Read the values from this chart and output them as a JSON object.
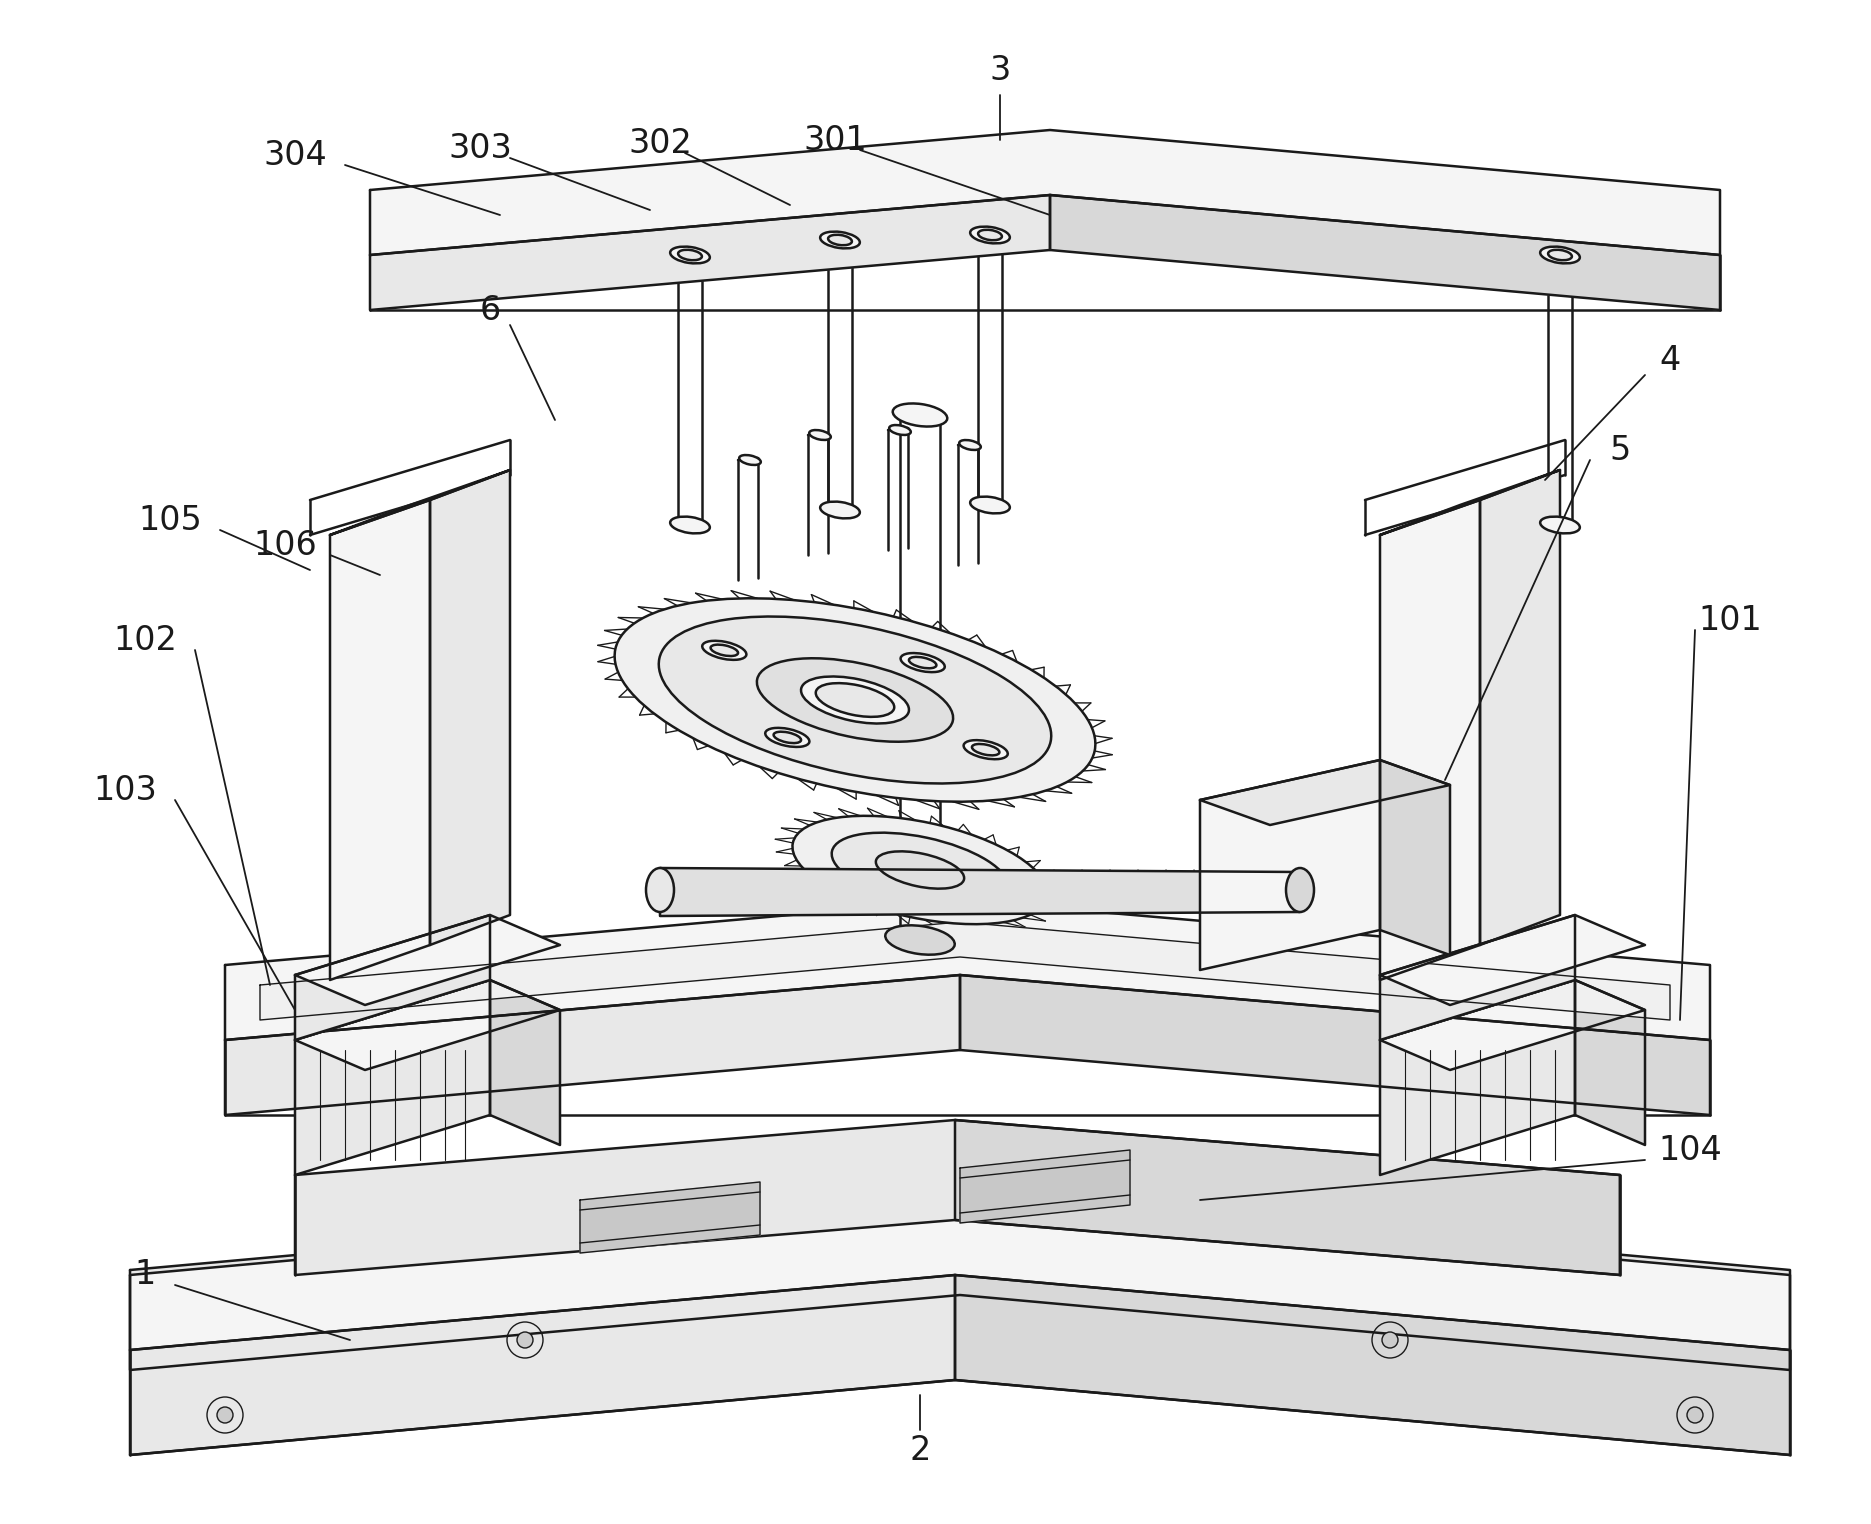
{
  "bg_color": "#ffffff",
  "line_color": "#1a1a1a",
  "lw_main": 1.8,
  "lw_thin": 1.0,
  "lw_annot": 1.3,
  "fig_width": 18.71,
  "fig_height": 15.24,
  "font_size": 24,
  "font_size_small": 20,
  "annot_color": "#1a1a1a",
  "fill_light": "#f5f5f5",
  "fill_mid": "#e8e8e8",
  "fill_dark": "#d8d8d8",
  "fill_darker": "#c8c8c8"
}
